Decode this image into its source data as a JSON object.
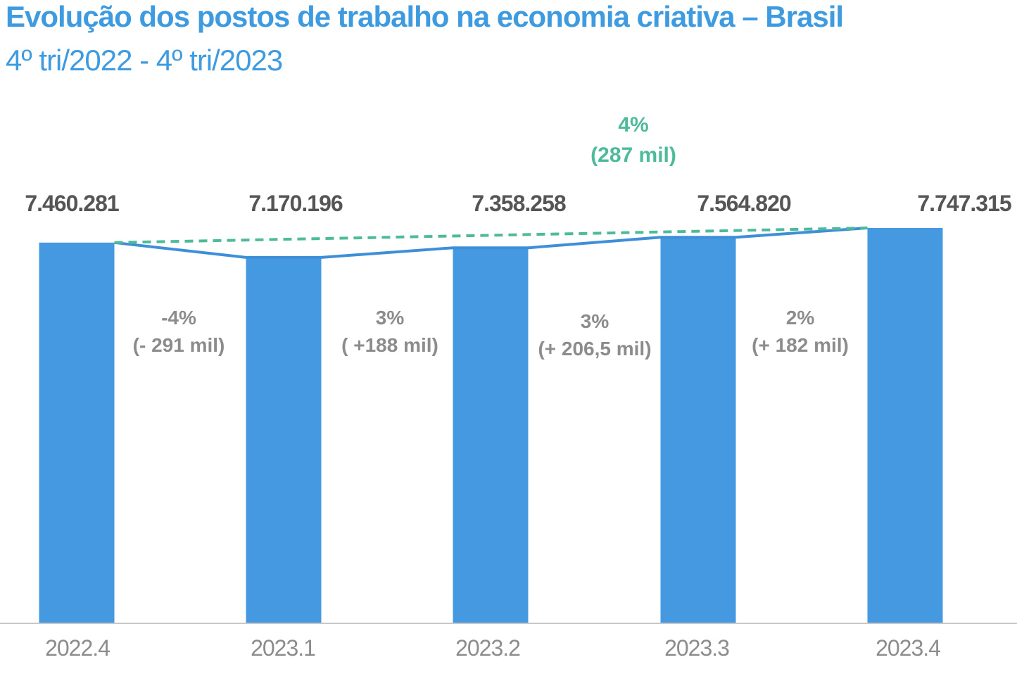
{
  "chart_data": {
    "type": "bar",
    "title": "Evolução dos postos de trabalho na economia criativa – Brasil",
    "subtitle": "4º tri/2022 - 4º tri/2023",
    "categories": [
      "2022.4",
      "2023.1",
      "2023.2",
      "2023.3",
      "2023.4"
    ],
    "values": [
      7460281,
      7170196,
      7358258,
      7564820,
      7747315
    ],
    "value_labels": [
      "7.460.281",
      "7.170.196",
      "7.358.258",
      "7.564.820",
      "7.747.315"
    ],
    "changes": [
      {
        "pct": "-4%",
        "abs": "(- 291 mil)"
      },
      {
        "pct": "3%",
        "abs": "( +188  mil)"
      },
      {
        "pct": "3%",
        "abs": "(+  206,5 mil)"
      },
      {
        "pct": "2%",
        "abs": "(+  182 mil)"
      }
    ],
    "total_change": {
      "pct": "4%",
      "abs": "(287 mil)"
    },
    "ylim": [
      0,
      7747315
    ],
    "grid": false,
    "colors": {
      "bar": "#4499e0",
      "line": "#3f8fd8",
      "trend": "#4dbb9b",
      "title": "#3f9be0"
    }
  }
}
